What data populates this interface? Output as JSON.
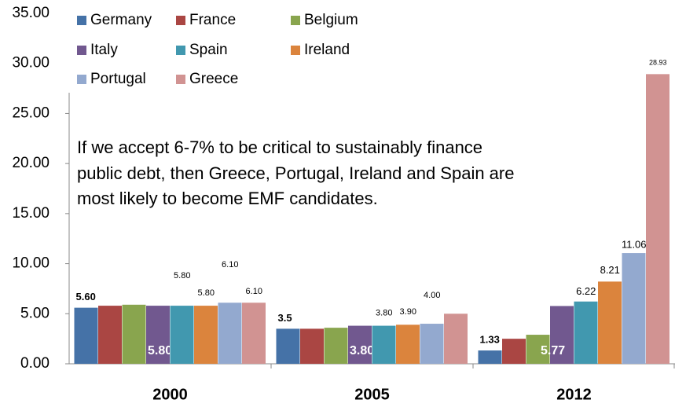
{
  "chart_data": {
    "type": "bar",
    "annotation": "If we accept 6-7% to be critical to sustainably finance public debt, then Greece, Portugal, Ireland and Spain are most likely to become EMF candidates.",
    "categories": [
      "2000",
      "2005",
      "2012"
    ],
    "series": [
      {
        "name": "Germany",
        "color": "#4572a7",
        "values": [
          5.6,
          3.5,
          1.33
        ],
        "value_labels": [
          "5.60",
          "3.5",
          "1.33"
        ]
      },
      {
        "name": "France",
        "color": "#aa4643",
        "values": [
          5.8,
          3.5,
          2.5
        ],
        "value_labels": [
          null,
          null,
          null
        ]
      },
      {
        "name": "Belgium",
        "color": "#89a54e",
        "values": [
          5.9,
          3.6,
          2.9
        ],
        "value_labels": [
          null,
          null,
          null
        ]
      },
      {
        "name": "Italy",
        "color": "#71588f",
        "values": [
          5.8,
          3.8,
          5.77
        ],
        "value_labels": [
          "5.80",
          "3.80",
          "5.77"
        ]
      },
      {
        "name": "Spain",
        "color": "#4198af",
        "values": [
          5.8,
          3.8,
          6.22
        ],
        "value_labels": [
          "5.80",
          "3.80",
          "6.22"
        ]
      },
      {
        "name": "Ireland",
        "color": "#db843d",
        "values": [
          5.8,
          3.9,
          8.21
        ],
        "value_labels": [
          "5.80",
          "3.90",
          "8.21"
        ]
      },
      {
        "name": "Portugal",
        "color": "#93a9cf",
        "values": [
          6.1,
          4.0,
          11.06
        ],
        "value_labels": [
          "6.10",
          "4.00",
          "11.06"
        ]
      },
      {
        "name": "Greece",
        "color": "#d19392",
        "values": [
          6.1,
          5.0,
          28.93
        ],
        "value_labels": [
          "6.10",
          null,
          "28.93"
        ]
      }
    ],
    "ylim": [
      0,
      35
    ],
    "yticks": [
      {
        "value": 0,
        "label": "0.00"
      },
      {
        "value": 5,
        "label": "5.00"
      },
      {
        "value": 10,
        "label": "10.00"
      },
      {
        "value": 15,
        "label": "15.00"
      },
      {
        "value": 20,
        "label": "20.00"
      },
      {
        "value": 25,
        "label": "25.00"
      },
      {
        "value": 30,
        "label": "30.00"
      },
      {
        "value": 35,
        "label": "35.00"
      }
    ],
    "legend": "top-left"
  }
}
